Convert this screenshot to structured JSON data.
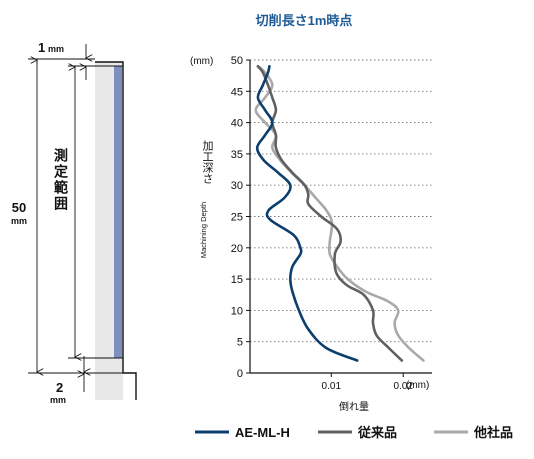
{
  "diagram": {
    "top_dim_value": "1",
    "top_dim_unit": "mm",
    "total_dim_value": "50",
    "total_dim_unit": "mm",
    "range_label": "測定範囲",
    "bottom_dim_value": "2",
    "bottom_dim_unit": "mm",
    "colors": {
      "tool_body": "#e8e8e8",
      "blue_strip": "#7d8fc0",
      "lines": "#111111"
    }
  },
  "chart_data": {
    "type": "line",
    "title": "切削長さ1m時点",
    "xlabel": "倒れ量",
    "x_unit": "(mm)",
    "ylabel_ja": "加工深さ",
    "ylabel_en": "Machining Depth",
    "y_unit": "(mm)",
    "xlim": [
      -0.0013,
      0.024
    ],
    "ylim": [
      0,
      50
    ],
    "x_ticks": [
      {
        "value": 0.01,
        "label": "0.01"
      },
      {
        "value": 0.02,
        "label": "0.02"
      }
    ],
    "y_ticks": [
      {
        "value": 0,
        "label": "0"
      },
      {
        "value": 5,
        "label": "5"
      },
      {
        "value": 10,
        "label": "10"
      },
      {
        "value": 15,
        "label": "15"
      },
      {
        "value": 20,
        "label": "20"
      },
      {
        "value": 25,
        "label": "25"
      },
      {
        "value": 30,
        "label": "30"
      },
      {
        "value": 35,
        "label": "35"
      },
      {
        "value": 40,
        "label": "40"
      },
      {
        "value": 45,
        "label": "45"
      },
      {
        "value": 50,
        "label": "50"
      }
    ],
    "grid": {
      "horizontal": true,
      "style": "dotted"
    },
    "legend_position": "bottom",
    "series": [
      {
        "name": "AE-ML-H",
        "color": "#0d3f6e",
        "points": [
          [
            0.0136,
            2
          ],
          [
            0.0093,
            4
          ],
          [
            0.0068,
            7
          ],
          [
            0.0055,
            10
          ],
          [
            0.0046,
            13
          ],
          [
            0.0043,
            15
          ],
          [
            0.0046,
            17
          ],
          [
            0.0057,
            19
          ],
          [
            0.0057,
            20
          ],
          [
            0.0048,
            22
          ],
          [
            0.0015,
            24.5
          ],
          [
            0.0013,
            26
          ],
          [
            0.0035,
            28
          ],
          [
            0.0043,
            30
          ],
          [
            0.0026,
            32
          ],
          [
            0.0006,
            34
          ],
          [
            -0.0003,
            36
          ],
          [
            0.0008,
            38
          ],
          [
            0.0018,
            40
          ],
          [
            0.0008,
            42
          ],
          [
            -0.0002,
            44
          ],
          [
            0.0005,
            46
          ],
          [
            0.0012,
            48
          ],
          [
            0.0014,
            49
          ]
        ]
      },
      {
        "name": "従来品",
        "color": "#606060",
        "points": [
          [
            0.0198,
            2
          ],
          [
            0.018,
            4
          ],
          [
            0.0163,
            6
          ],
          [
            0.0158,
            8
          ],
          [
            0.0158,
            10
          ],
          [
            0.0145,
            12.5
          ],
          [
            0.0122,
            14
          ],
          [
            0.0107,
            16
          ],
          [
            0.0105,
            19
          ],
          [
            0.0113,
            21
          ],
          [
            0.0108,
            23
          ],
          [
            0.0086,
            25
          ],
          [
            0.0068,
            27
          ],
          [
            0.0068,
            28.5
          ],
          [
            0.0063,
            30
          ],
          [
            0.0046,
            32
          ],
          [
            0.0031,
            34
          ],
          [
            0.0023,
            36
          ],
          [
            0.0023,
            38
          ],
          [
            0.0018,
            40
          ],
          [
            0.0023,
            42
          ],
          [
            0.0018,
            44
          ],
          [
            0.0012,
            46
          ],
          [
            0.0005,
            48
          ],
          [
            -0.0002,
            49
          ]
        ]
      },
      {
        "name": "他社品",
        "color": "#a9a9a9",
        "points": [
          [
            0.0228,
            2
          ],
          [
            0.0208,
            4
          ],
          [
            0.0193,
            6
          ],
          [
            0.0188,
            8
          ],
          [
            0.0193,
            10
          ],
          [
            0.0178,
            11.5
          ],
          [
            0.0148,
            13
          ],
          [
            0.0123,
            15
          ],
          [
            0.0108,
            17
          ],
          [
            0.0098,
            19
          ],
          [
            0.0098,
            21
          ],
          [
            0.0101,
            24
          ],
          [
            0.0093,
            26
          ],
          [
            0.0078,
            28
          ],
          [
            0.0063,
            30
          ],
          [
            0.0045,
            32
          ],
          [
            0.0029,
            34
          ],
          [
            0.0018,
            36
          ],
          [
            0.0023,
            38
          ],
          [
            0.0008,
            40
          ],
          [
            -0.0005,
            42
          ],
          [
            0.0008,
            44
          ],
          [
            0.0018,
            46
          ],
          [
            0.0008,
            48
          ],
          [
            -0.0002,
            49
          ]
        ]
      }
    ]
  }
}
